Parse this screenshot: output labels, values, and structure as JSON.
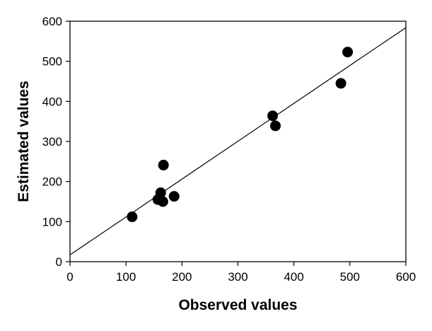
{
  "chart_data": {
    "type": "scatter",
    "title": "",
    "xlabel": "Observed values",
    "ylabel": "Estimated values",
    "xlim": [
      0,
      600
    ],
    "ylim": [
      0,
      600
    ],
    "x_ticks": [
      0,
      100,
      200,
      300,
      400,
      500,
      600
    ],
    "y_ticks": [
      0,
      100,
      200,
      300,
      400,
      500,
      600
    ],
    "x_tick_labels": [
      "0",
      "100",
      "200",
      "300",
      "400",
      "500",
      "600"
    ],
    "y_tick_labels": [
      "0",
      "100",
      "200",
      "300",
      "400",
      "500",
      "600"
    ],
    "grid": false,
    "legend": false,
    "colors": {
      "points": "#000000",
      "line": "#000000",
      "axis": "#000000"
    },
    "points": [
      {
        "x": 111,
        "y": 112
      },
      {
        "x": 157,
        "y": 155
      },
      {
        "x": 162,
        "y": 172
      },
      {
        "x": 166,
        "y": 150
      },
      {
        "x": 167,
        "y": 241
      },
      {
        "x": 186,
        "y": 163
      },
      {
        "x": 362,
        "y": 364
      },
      {
        "x": 367,
        "y": 339
      },
      {
        "x": 484,
        "y": 445
      },
      {
        "x": 496,
        "y": 523
      }
    ],
    "fit_line": {
      "x": [
        0,
        600
      ],
      "y": [
        17,
        584
      ]
    }
  }
}
